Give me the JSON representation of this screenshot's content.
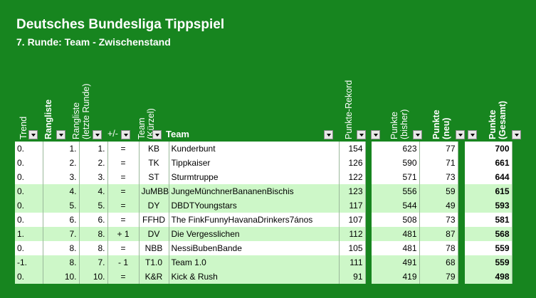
{
  "title": "Deutsches Bundesliga Tippspiel",
  "subtitle": "7. Runde: Team - Zwischenstand",
  "headers": {
    "trend": "Trend",
    "rangliste": "Rangliste",
    "rangliste_letzte_1": "Rangliste",
    "rangliste_letzte_2": "(letzte Runde)",
    "plusminus": "+/-",
    "team_kurz_1": "Team",
    "team_kurz_2": "(Kürzel)",
    "team": "Team",
    "rekord": "Punkte-Rekord",
    "bisher_1": "Punkte",
    "bisher_2": "(bisher)",
    "neu_1": "Punkte",
    "neu_2": "(neu)",
    "gesamt_1": "Punkte",
    "gesamt_2": "(Gesamt)"
  },
  "rows": [
    {
      "trend": "0.",
      "rang": "1.",
      "letzte": "1.",
      "pm": "=",
      "kurz": "KB",
      "team": "Kunderbunt",
      "rekord": "154",
      "bisher": "623",
      "neu": "77",
      "gesamt": "700"
    },
    {
      "trend": "0.",
      "rang": "2.",
      "letzte": "2.",
      "pm": "=",
      "kurz": "TK",
      "team": "Tippkaiser",
      "rekord": "126",
      "bisher": "590",
      "neu": "71",
      "gesamt": "661"
    },
    {
      "trend": "0.",
      "rang": "3.",
      "letzte": "3.",
      "pm": "=",
      "kurz": "ST",
      "team": "Sturmtruppe",
      "rekord": "122",
      "bisher": "571",
      "neu": "73",
      "gesamt": "644"
    },
    {
      "trend": "0.",
      "rang": "4.",
      "letzte": "4.",
      "pm": "=",
      "kurz": "JuMBB",
      "team": "JungeMünchnerBananenBischis",
      "rekord": "123",
      "bisher": "556",
      "neu": "59",
      "gesamt": "615"
    },
    {
      "trend": "0.",
      "rang": "5.",
      "letzte": "5.",
      "pm": "=",
      "kurz": "DY",
      "team": "DBDTYoungstars",
      "rekord": "117",
      "bisher": "544",
      "neu": "49",
      "gesamt": "593"
    },
    {
      "trend": "0.",
      "rang": "6.",
      "letzte": "6.",
      "pm": "=",
      "kurz": "FFHD",
      "team": "The FinkFunnyHavanaDrinkers7ános",
      "rekord": "107",
      "bisher": "508",
      "neu": "73",
      "gesamt": "581"
    },
    {
      "trend": "1.",
      "rang": "7.",
      "letzte": "8.",
      "pm": "+ 1",
      "kurz": "DV",
      "team": "Die Vergesslichen",
      "rekord": "112",
      "bisher": "481",
      "neu": "87",
      "gesamt": "568"
    },
    {
      "trend": "0.",
      "rang": "8.",
      "letzte": "8.",
      "pm": "=",
      "kurz": "NBB",
      "team": "NessiBubenBande",
      "rekord": "105",
      "bisher": "481",
      "neu": "78",
      "gesamt": "559"
    },
    {
      "trend": "-1.",
      "rang": "8.",
      "letzte": "7.",
      "pm": "- 1",
      "kurz": "T1.0",
      "team": "Team 1.0",
      "rekord": "111",
      "bisher": "491",
      "neu": "68",
      "gesamt": "559"
    },
    {
      "trend": "0.",
      "rang": "10.",
      "letzte": "10.",
      "pm": "=",
      "kurz": "K&R",
      "team": "Kick & Rush",
      "rekord": "91",
      "bisher": "419",
      "neu": "79",
      "gesamt": "498"
    }
  ],
  "colors": {
    "background": "#17851f",
    "row_white": "#ffffff",
    "row_green": "#cdf7c8"
  },
  "icons": {
    "filter": "dropdown-filter-icon"
  }
}
